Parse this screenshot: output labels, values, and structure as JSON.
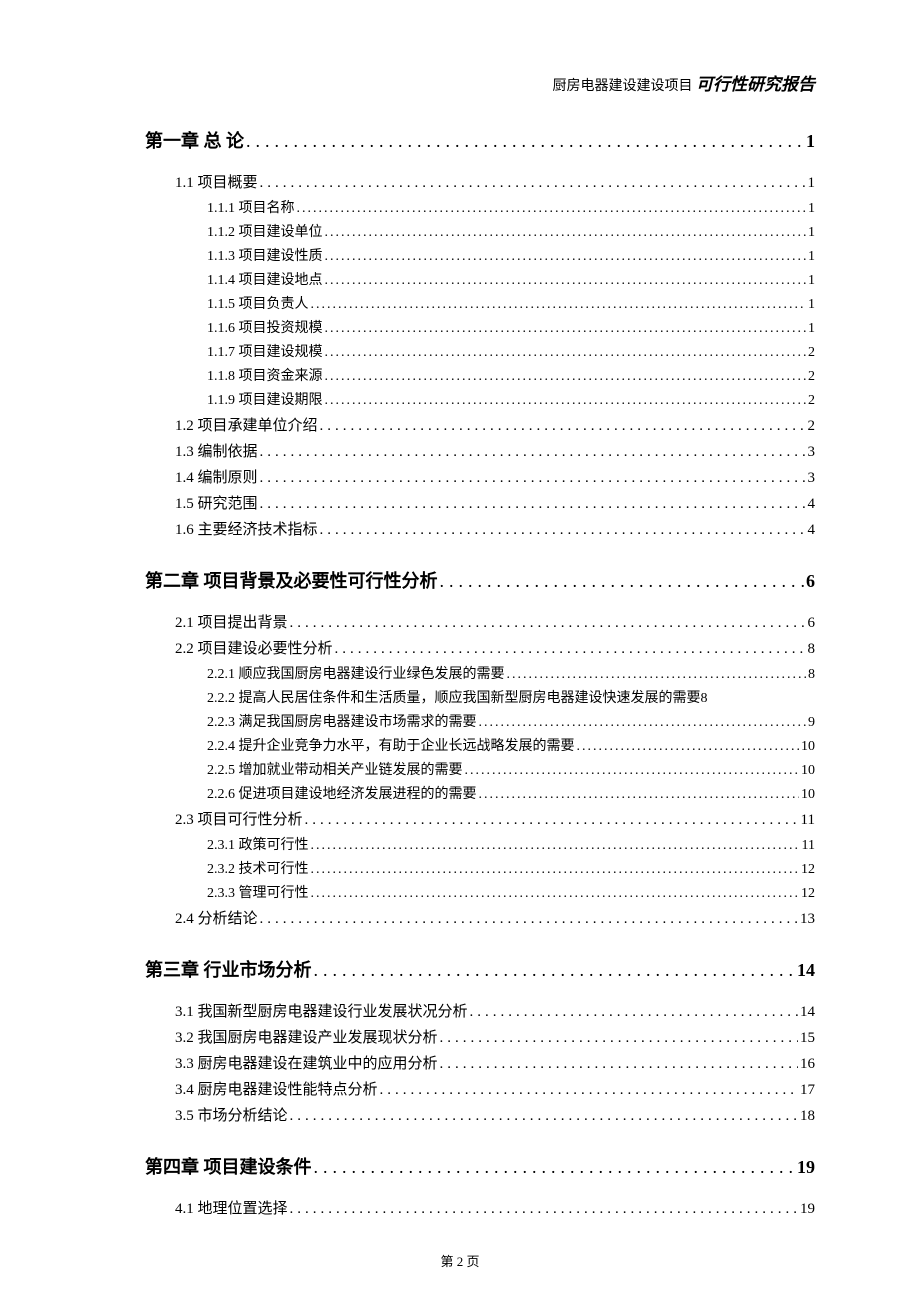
{
  "header": {
    "project": "厨房电器建设建设项目",
    "title": "可行性研究报告"
  },
  "footer": {
    "text": "第 2 页"
  },
  "toc": [
    {
      "level": 1,
      "label": "第一章 总 论",
      "page": "1"
    },
    {
      "level": 2,
      "label": "1.1 项目概要",
      "page": "1"
    },
    {
      "level": 3,
      "label": "1.1.1 项目名称",
      "page": "1"
    },
    {
      "level": 3,
      "label": "1.1.2 项目建设单位",
      "page": "1"
    },
    {
      "level": 3,
      "label": "1.1.3 项目建设性质",
      "page": "1"
    },
    {
      "level": 3,
      "label": "1.1.4 项目建设地点",
      "page": "1"
    },
    {
      "level": 3,
      "label": "1.1.5 项目负责人",
      "page": "1"
    },
    {
      "level": 3,
      "label": "1.1.6 项目投资规模",
      "page": "1"
    },
    {
      "level": 3,
      "label": "1.1.7 项目建设规模",
      "page": "2"
    },
    {
      "level": 3,
      "label": "1.1.8 项目资金来源",
      "page": "2"
    },
    {
      "level": 3,
      "label": "1.1.9 项目建设期限",
      "page": "2"
    },
    {
      "level": 2,
      "label": "1.2 项目承建单位介绍",
      "page": "2"
    },
    {
      "level": 2,
      "label": "1.3 编制依据",
      "page": "3"
    },
    {
      "level": 2,
      "label": "1.4 编制原则",
      "page": "3"
    },
    {
      "level": 2,
      "label": "1.5 研究范围",
      "page": "4"
    },
    {
      "level": 2,
      "label": "1.6 主要经济技术指标",
      "page": "4"
    },
    {
      "level": 1,
      "label": "第二章 项目背景及必要性可行性分析",
      "page": "6"
    },
    {
      "level": 2,
      "label": "2.1 项目提出背景",
      "page": "6"
    },
    {
      "level": 2,
      "label": "2.2 项目建设必要性分析",
      "page": "8"
    },
    {
      "level": 3,
      "label": "2.2.1 顺应我国厨房电器建设行业绿色发展的需要",
      "page": "8"
    },
    {
      "level": 3,
      "label": "2.2.2 提高人民居住条件和生活质量，顺应我国新型厨房电器建设快速发展的需要",
      "page": "8",
      "no_leader": true
    },
    {
      "level": 3,
      "label": "2.2.3 满足我国厨房电器建设市场需求的需要",
      "page": "9"
    },
    {
      "level": 3,
      "label": "2.2.4 提升企业竞争力水平，有助于企业长远战略发展的需要",
      "page": "10"
    },
    {
      "level": 3,
      "label": "2.2.5 增加就业带动相关产业链发展的需要",
      "page": "10"
    },
    {
      "level": 3,
      "label": "2.2.6 促进项目建设地经济发展进程的的需要",
      "page": "10"
    },
    {
      "level": 2,
      "label": "2.3 项目可行性分析",
      "page": "11"
    },
    {
      "level": 3,
      "label": "2.3.1 政策可行性",
      "page": "11"
    },
    {
      "level": 3,
      "label": "2.3.2 技术可行性",
      "page": "12"
    },
    {
      "level": 3,
      "label": "2.3.3 管理可行性",
      "page": "12"
    },
    {
      "level": 2,
      "label": "2.4 分析结论",
      "page": "13"
    },
    {
      "level": 1,
      "label": "第三章 行业市场分析",
      "page": "14"
    },
    {
      "level": 2,
      "label": "3.1 我国新型厨房电器建设行业发展状况分析",
      "page": "14"
    },
    {
      "level": 2,
      "label": "3.2 我国厨房电器建设产业发展现状分析",
      "page": "15"
    },
    {
      "level": 2,
      "label": "3.3 厨房电器建设在建筑业中的应用分析",
      "page": "16"
    },
    {
      "level": 2,
      "label": "3.4 厨房电器建设性能特点分析",
      "page": "17"
    },
    {
      "level": 2,
      "label": "3.5 市场分析结论",
      "page": "18"
    },
    {
      "level": 1,
      "label": "第四章 项目建设条件",
      "page": "19"
    },
    {
      "level": 2,
      "label": "4.1 地理位置选择",
      "page": "19"
    }
  ]
}
